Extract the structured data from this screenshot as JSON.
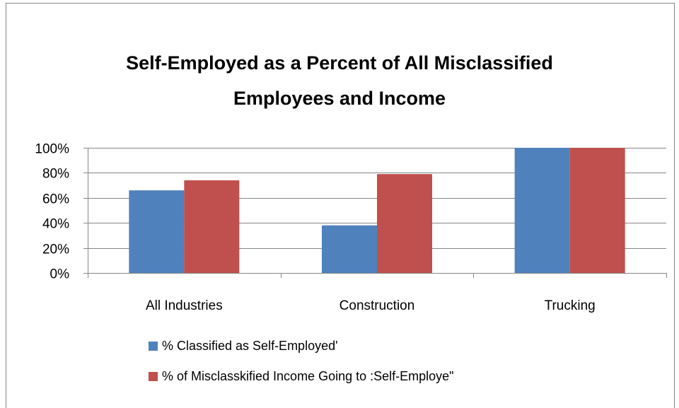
{
  "chart_data": {
    "type": "bar",
    "title_lines": [
      "Self-Employed as a Percent of All Misclassified",
      "Employees and Income"
    ],
    "categories": [
      "All Industries",
      "Construction",
      "Trucking"
    ],
    "series": [
      {
        "name": "% Classified as Self-Employed'",
        "values": [
          66,
          38,
          100
        ],
        "color": "#4F81BD"
      },
      {
        "name": "% of Misclasskified Income Going to :Self-Employe\"",
        "values": [
          74,
          79,
          100
        ],
        "color": "#C0504D"
      }
    ],
    "ylim": [
      0,
      100
    ],
    "yticks": [
      0,
      20,
      40,
      60,
      80,
      100
    ],
    "ytick_labels": [
      "0%",
      "20%",
      "40%",
      "60%",
      "80%",
      "100%"
    ],
    "grid": true,
    "legend_position": "bottom",
    "xlabel": "",
    "ylabel": ""
  }
}
